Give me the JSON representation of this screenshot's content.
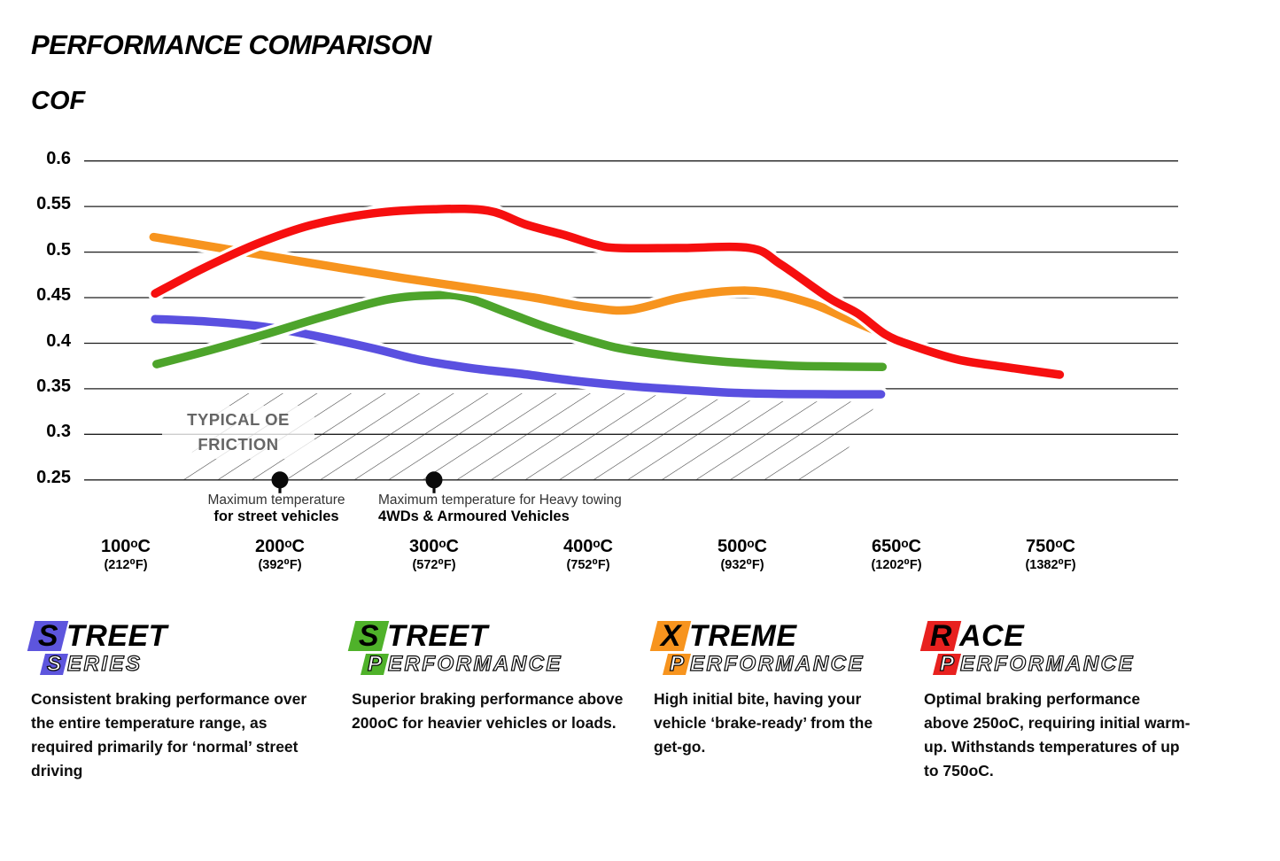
{
  "title": "PERFORMANCE COMPARISON",
  "y_axis_title": "COF",
  "chart_data": {
    "type": "line",
    "title": "PERFORMANCE COMPARISON",
    "ylabel": "COF",
    "xlabel": "",
    "ylim": [
      0.25,
      0.6
    ],
    "grid": "horizontal",
    "y_ticks": [
      "0.6",
      "0.55",
      "0.5",
      "0.45",
      "0.4",
      "0.35",
      "0.3",
      "0.25"
    ],
    "y_tick_values": [
      0.6,
      0.55,
      0.5,
      0.45,
      0.4,
      0.35,
      0.3,
      0.25
    ],
    "x_tick_labels": [
      {
        "celsius": "100ᵒC",
        "fahrenheit": "(212⁰F)"
      },
      {
        "celsius": "200ᵒC",
        "fahrenheit": "(392⁰F)"
      },
      {
        "celsius": "300ᵒC",
        "fahrenheit": "(572⁰F)"
      },
      {
        "celsius": "400ᵒC",
        "fahrenheit": "(752⁰F)"
      },
      {
        "celsius": "500ᵒC",
        "fahrenheit": "(932⁰F)"
      },
      {
        "celsius": "650ᵒC",
        "fahrenheit": "(1202⁰F)"
      },
      {
        "celsius": "750ᵒC",
        "fahrenheit": "(1382⁰F)"
      }
    ],
    "points_x_unit": "category-index (0=100C, 1=200C, 2=300C, 3=400C, 4=500C, 5=650C, 6=750C)",
    "series": [
      {
        "name": "Street Series",
        "color": "#5a50e0",
        "points": [
          [
            0.19,
            0.4265
          ],
          [
            0.55,
            0.4235
          ],
          [
            0.9,
            0.418
          ],
          [
            1.2,
            0.409
          ],
          [
            1.6,
            0.3945
          ],
          [
            1.9,
            0.382
          ],
          [
            2.25,
            0.3725
          ],
          [
            2.56,
            0.3665
          ],
          [
            2.9,
            0.359
          ],
          [
            3.3,
            0.3525
          ],
          [
            3.7,
            0.348
          ],
          [
            3.95,
            0.3455
          ],
          [
            4.3,
            0.3442
          ],
          [
            4.6,
            0.344
          ],
          [
            4.9,
            0.344
          ]
        ]
      },
      {
        "name": "Street Performance",
        "color": "#4da42b",
        "points": [
          [
            0.2,
            0.377
          ],
          [
            0.55,
            0.3925
          ],
          [
            0.9,
            0.4095
          ],
          [
            1.3,
            0.43
          ],
          [
            1.7,
            0.448
          ],
          [
            2.0,
            0.4525
          ],
          [
            2.2,
            0.4505
          ],
          [
            2.5,
            0.432
          ],
          [
            2.75,
            0.4165
          ],
          [
            3.05,
            0.401
          ],
          [
            3.25,
            0.393
          ],
          [
            3.6,
            0.3845
          ],
          [
            3.9,
            0.3795
          ],
          [
            4.3,
            0.3755
          ],
          [
            4.6,
            0.3745
          ],
          [
            4.91,
            0.374
          ]
        ]
      },
      {
        "name": "Xtreme Performance",
        "color": "#f7941e",
        "points": [
          [
            0.18,
            0.5165
          ],
          [
            0.7,
            0.502
          ],
          [
            1.2,
            0.488
          ],
          [
            1.8,
            0.4715
          ],
          [
            2.3,
            0.459
          ],
          [
            2.65,
            0.45
          ],
          [
            3.0,
            0.4395
          ],
          [
            3.27,
            0.4365
          ],
          [
            3.6,
            0.45
          ],
          [
            3.9,
            0.457
          ],
          [
            4.15,
            0.456
          ],
          [
            4.45,
            0.4435
          ],
          [
            4.7,
            0.4255
          ],
          [
            4.92,
            0.41
          ]
        ]
      },
      {
        "name": "Race Performance",
        "color": "#f60f0f",
        "points": [
          [
            0.19,
            0.4545
          ],
          [
            0.5,
            0.482
          ],
          [
            0.85,
            0.509
          ],
          [
            1.2,
            0.5295
          ],
          [
            1.6,
            0.5425
          ],
          [
            2.0,
            0.547
          ],
          [
            2.35,
            0.5455
          ],
          [
            2.6,
            0.53
          ],
          [
            2.85,
            0.5185
          ],
          [
            3.05,
            0.508
          ],
          [
            3.2,
            0.5045
          ],
          [
            3.6,
            0.5045
          ],
          [
            4.05,
            0.5045
          ],
          [
            4.25,
            0.4865
          ],
          [
            4.56,
            0.45
          ],
          [
            4.75,
            0.4325
          ],
          [
            4.93,
            0.4095
          ],
          [
            5.1,
            0.3975
          ],
          [
            5.4,
            0.382
          ],
          [
            5.7,
            0.374
          ],
          [
            6.06,
            0.3655
          ]
        ]
      }
    ],
    "oe_region": {
      "label_line1": "TYPICAL OE",
      "label_line2": "FRICTION",
      "cof_range": [
        0.25,
        0.345
      ],
      "x_range_categories": [
        0.3,
        4.9
      ]
    },
    "annotations": [
      {
        "cat": 1,
        "line1": "Maximum temperature",
        "line2": "for street vehicles"
      },
      {
        "cat": 2,
        "line1": "Maximum temperature for Heavy towing",
        "line2": "4WDs & Armoured Vehicles"
      }
    ]
  },
  "legend": [
    {
      "word1": "STREET",
      "word2": "SERIES",
      "color": "#5d55dd",
      "desc_lines": [
        "Consistent braking performance over",
        "the entire temperature range, as",
        "required primarily for ‘normal’ street",
        "driving"
      ]
    },
    {
      "word1": "STREET",
      "word2": "PERFORMANCE",
      "color": "#4fb22a",
      "desc_lines": [
        "Superior braking performance above",
        "200oC for heavier vehicles or loads."
      ]
    },
    {
      "word1": "XTREME",
      "word2": "PERFORMANCE",
      "color": "#f7941e",
      "desc_lines": [
        "High initial bite, having your",
        "vehicle ‘brake-ready’ from the",
        "get-go."
      ]
    },
    {
      "word1": "RACE",
      "word2": "PERFORMANCE",
      "color": "#e8211f",
      "desc_lines": [
        "Optimal braking performance",
        "above 250oC, requiring initial warm-",
        "up. Withstands temperatures of up",
        "to 750oC."
      ]
    }
  ]
}
